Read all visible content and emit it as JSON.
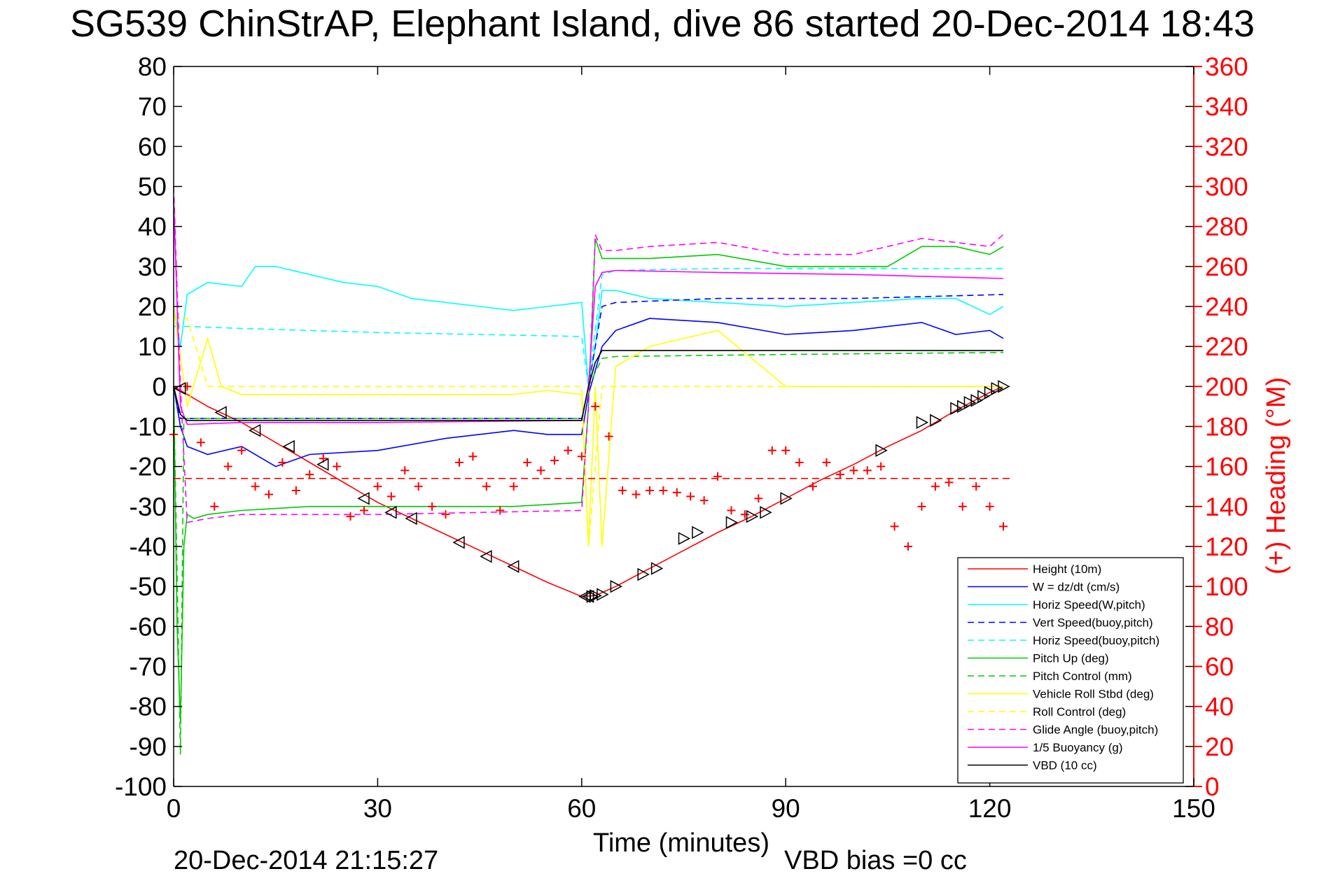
{
  "chart_data": {
    "type": "line",
    "title": "SG539 ChinStrAP, Elephant Island, dive 86 started 20-Dec-2014 18:43",
    "xlabel": "Time (minutes)",
    "ylabel_right": "(+) Heading (°M)",
    "xlim": [
      0,
      150
    ],
    "ylim": [
      -100,
      80
    ],
    "ylim_right": [
      0,
      360
    ],
    "x_ticks": [
      "0",
      "30",
      "60",
      "90",
      "120",
      "150"
    ],
    "y_ticks": [
      "80",
      "70",
      "60",
      "50",
      "40",
      "30",
      "20",
      "10",
      "0",
      "-10",
      "-20",
      "-30",
      "-40",
      "-50",
      "-60",
      "-70",
      "-80",
      "-90",
      "-100"
    ],
    "y_ticks_right": [
      "360",
      "340",
      "320",
      "300",
      "280",
      "260",
      "240",
      "220",
      "200",
      "180",
      "160",
      "140",
      "120",
      "100",
      "80",
      "60",
      "40",
      "20",
      "0"
    ],
    "footer_left": "20-Dec-2014 21:15:27",
    "footer_right": "VBD bias =0 cc",
    "legend_position": "lower-right",
    "grid": false,
    "series": [
      {
        "name": "Height (10m)",
        "color": "#ff0000",
        "style": "solid",
        "x": [
          0,
          1,
          5,
          10,
          15,
          20,
          25,
          30,
          35,
          40,
          45,
          50,
          55,
          60,
          62,
          65,
          70,
          75,
          80,
          85,
          90,
          95,
          100,
          105,
          110,
          115,
          120,
          122
        ],
        "y": [
          0,
          -1,
          -5,
          -9,
          -14,
          -19,
          -24,
          -29,
          -33,
          -37,
          -41,
          -45,
          -49,
          -52.5,
          -52.3,
          -50,
          -45.5,
          -41,
          -36.5,
          -32.5,
          -28,
          -23.5,
          -19.5,
          -15,
          -11,
          -6,
          -1.5,
          0
        ]
      },
      {
        "name": "W = dz/dt (cm/s)",
        "color": "#0000ff",
        "style": "solid",
        "x": [
          0,
          1,
          2,
          5,
          10,
          15,
          20,
          30,
          40,
          50,
          55,
          60,
          61,
          63,
          65,
          70,
          80,
          90,
          100,
          110,
          115,
          120,
          122
        ],
        "y": [
          0,
          -10,
          -15,
          -17,
          -15,
          -20,
          -17,
          -16,
          -13,
          -11,
          -12,
          -12,
          -2,
          10,
          14,
          17,
          16,
          13,
          14,
          16,
          13,
          14,
          12
        ]
      },
      {
        "name": "Horiz Speed(W,pitch)",
        "color": "#00ffff",
        "style": "solid",
        "x": [
          0,
          1,
          2,
          5,
          10,
          12,
          15,
          20,
          25,
          30,
          35,
          40,
          45,
          50,
          55,
          60,
          61,
          62,
          63,
          65,
          70,
          80,
          90,
          100,
          110,
          115,
          120,
          122
        ],
        "y": [
          20,
          10,
          23,
          26,
          25,
          30,
          30,
          28,
          26,
          25,
          22,
          21,
          20,
          19,
          20,
          21,
          0,
          10,
          24,
          24,
          22,
          21,
          20,
          21,
          22,
          22,
          18,
          20
        ]
      },
      {
        "name": "Vert Speed(buoy,pitch)",
        "color": "#0000ff",
        "style": "dashed",
        "x": [
          0,
          1,
          2,
          10,
          30,
          60,
          61,
          63,
          65,
          80,
          100,
          122
        ],
        "y": [
          0,
          -8,
          -8,
          -8,
          -8,
          -8,
          0,
          20,
          21,
          22,
          22,
          23
        ]
      },
      {
        "name": "Horiz Speed(buoy,pitch)",
        "color": "#00ffff",
        "style": "dashed",
        "x": [
          0,
          2,
          10,
          30,
          60,
          61,
          63,
          65,
          80,
          100,
          122
        ],
        "y": [
          15,
          15,
          14.5,
          13.5,
          12.5,
          0,
          28,
          29,
          29.5,
          29.5,
          29.5
        ]
      },
      {
        "name": "Pitch Up (deg)",
        "color": "#00cc00",
        "style": "solid",
        "x": [
          0,
          0.5,
          1,
          1.5,
          2,
          3,
          5,
          10,
          20,
          30,
          40,
          50,
          60,
          61,
          62,
          63,
          65,
          70,
          80,
          90,
          100,
          105,
          110,
          115,
          120,
          122
        ],
        "y": [
          0,
          -60,
          -84,
          -40,
          -32,
          -33,
          -32,
          -31,
          -30,
          -30,
          -30,
          -30,
          -29,
          -5,
          37,
          32,
          32,
          32,
          33,
          30,
          30,
          30,
          35,
          35,
          33,
          35
        ]
      },
      {
        "name": "Pitch Control (mm)",
        "color": "#00cc00",
        "style": "dashed",
        "x": [
          0,
          1,
          1.5,
          2,
          10,
          30,
          60,
          61,
          63,
          65,
          90,
          122
        ],
        "y": [
          0,
          -92,
          -8,
          -8,
          -8,
          -8,
          -8,
          0,
          7,
          7.5,
          8,
          8.5
        ]
      },
      {
        "name": "Vehicle Roll Stbd (deg)",
        "color": "#ffff00",
        "style": "solid",
        "x": [
          0,
          2,
          5,
          7,
          10,
          20,
          30,
          40,
          50,
          55,
          60,
          61,
          62,
          63,
          65,
          70,
          80,
          90,
          100,
          110,
          120,
          122
        ],
        "y": [
          20,
          -5,
          12,
          0,
          -2,
          -2,
          -2,
          -2,
          -2,
          -1,
          -2,
          -40,
          0,
          -40,
          5,
          10,
          14,
          0,
          0,
          0,
          0,
          0
        ]
      },
      {
        "name": "Roll Control (deg)",
        "color": "#ffff00",
        "style": "dashed",
        "x": [
          0,
          2,
          5,
          10,
          30,
          60,
          61,
          63,
          65,
          90,
          122
        ],
        "y": [
          17,
          17,
          0,
          0,
          0,
          0,
          -40,
          0,
          0,
          0,
          0
        ]
      },
      {
        "name": "Glide Angle (buoy,pitch)",
        "color": "#ff00ff",
        "style": "dashed",
        "x": [
          0,
          1,
          2,
          5,
          10,
          30,
          60,
          61,
          62,
          63,
          65,
          70,
          80,
          90,
          100,
          110,
          120,
          122
        ],
        "y": [
          50,
          0,
          -34,
          -33,
          -32,
          -32,
          -31,
          -5,
          38,
          34,
          34,
          35,
          36,
          33,
          33,
          37,
          35,
          38
        ]
      },
      {
        "name": "1/5 Buoyancy (g)",
        "color": "#ff00ff",
        "style": "solid",
        "x": [
          0,
          1,
          2,
          10,
          30,
          60,
          61,
          62,
          63,
          65,
          80,
          100,
          122
        ],
        "y": [
          47,
          -5,
          -9.5,
          -9,
          -9,
          -8.5,
          0,
          25,
          28.5,
          29,
          28.5,
          28,
          27
        ]
      },
      {
        "name": "VBD (10 cc)",
        "color": "#000000",
        "style": "solid",
        "x": [
          0,
          1,
          2,
          10,
          30,
          60,
          61,
          62,
          63,
          65,
          80,
          100,
          122
        ],
        "y": [
          0,
          -7,
          -8.5,
          -8.5,
          -8.5,
          -8.5,
          0,
          6,
          9,
          9,
          9,
          9,
          9
        ]
      }
    ],
    "heading_series": {
      "name": "(+) Heading (°M)",
      "color": "#ff0000",
      "mean": 154,
      "x": [
        0,
        2,
        4,
        6,
        8,
        10,
        12,
        14,
        16,
        18,
        20,
        22,
        24,
        26,
        28,
        30,
        32,
        34,
        36,
        38,
        40,
        42,
        44,
        46,
        48,
        50,
        52,
        54,
        56,
        58,
        60,
        62,
        64,
        66,
        68,
        70,
        72,
        74,
        76,
        78,
        80,
        82,
        84,
        86,
        88,
        90,
        92,
        94,
        96,
        98,
        100,
        102,
        104,
        106,
        108,
        110,
        112,
        114,
        116,
        118,
        120,
        122
      ],
      "y": [
        176,
        200,
        172,
        140,
        160,
        168,
        150,
        146,
        162,
        148,
        156,
        164,
        160,
        135,
        138,
        150,
        145,
        158,
        150,
        140,
        136,
        162,
        165,
        150,
        138,
        150,
        162,
        158,
        163,
        168,
        165,
        190,
        175,
        148,
        146,
        148,
        148,
        147,
        145,
        143,
        155,
        138,
        136,
        144,
        168,
        168,
        162,
        150,
        162,
        156,
        158,
        158,
        160,
        130,
        120,
        140,
        150,
        152,
        140,
        150,
        140,
        130
      ]
    },
    "height_markers": {
      "x": [
        1,
        7,
        12,
        17,
        22,
        28,
        32,
        35,
        42,
        46,
        50,
        60.5,
        61,
        61.5,
        62,
        63,
        65,
        69,
        71,
        75,
        77,
        82,
        85,
        87,
        90,
        104,
        110,
        112,
        115,
        116,
        117,
        118,
        119,
        120,
        121,
        122
      ],
      "y": [
        -0.5,
        -6.5,
        -11,
        -15,
        -19.5,
        -28,
        -31.5,
        -33,
        -39,
        -42.5,
        -45,
        -52.5,
        -52.5,
        -52.5,
        -52.3,
        -52,
        -50,
        -47,
        -45.5,
        -38,
        -36.5,
        -34,
        -32.5,
        -31.5,
        -28,
        -16,
        -9,
        -8.5,
        -5.5,
        -5,
        -4,
        -3.5,
        -2.5,
        -1.5,
        -0.5,
        0
      ]
    }
  }
}
